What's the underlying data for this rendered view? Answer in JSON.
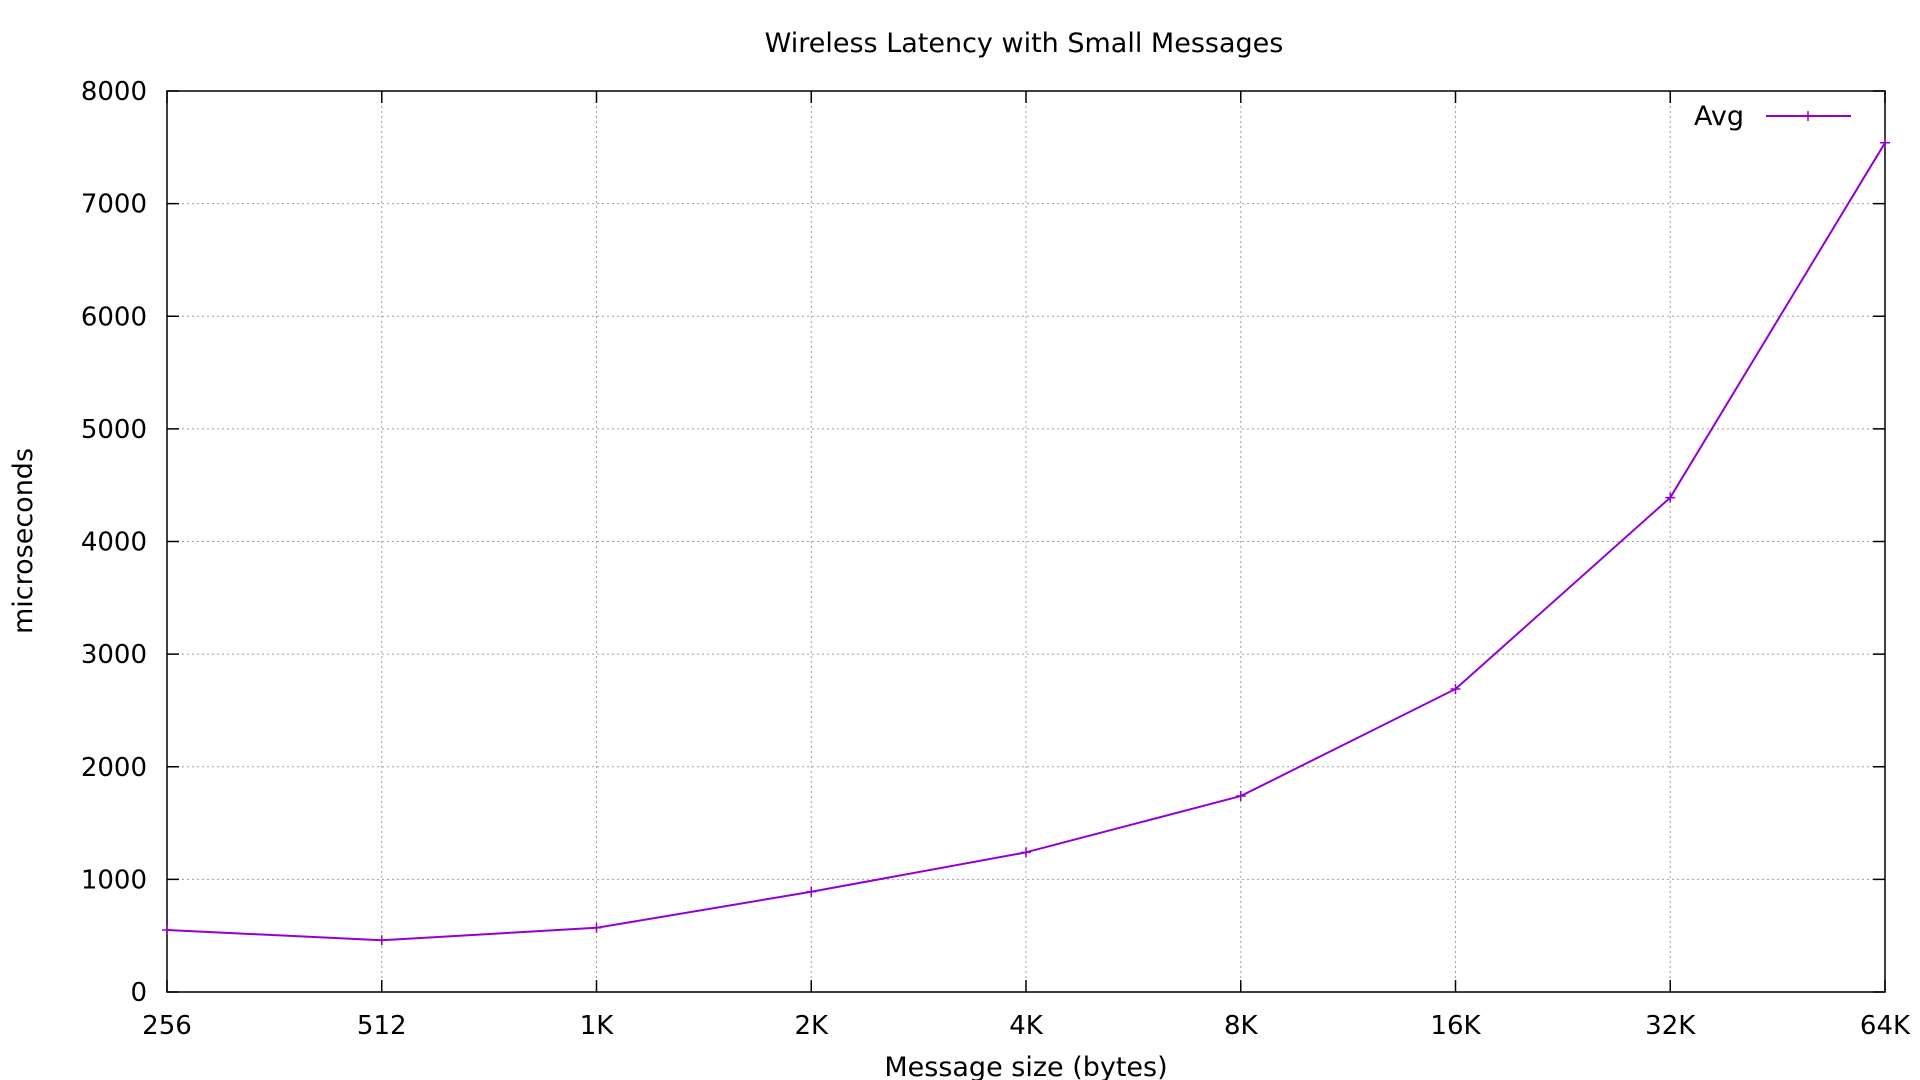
{
  "chart_data": {
    "type": "line",
    "title": "Wireless Latency with Small Messages",
    "xlabel": "Message size (bytes)",
    "ylabel": "microseconds",
    "categories": [
      "256",
      "512",
      "1K",
      "2K",
      "4K",
      "8K",
      "16K",
      "32K",
      "64K"
    ],
    "yticks": [
      "0",
      "1000",
      "2000",
      "3000",
      "4000",
      "5000",
      "6000",
      "7000",
      "8000"
    ],
    "ylim": [
      0,
      8000
    ],
    "grid": true,
    "legend_position": "top-right",
    "series": [
      {
        "name": "Avg",
        "color": "#9400d3",
        "marker": "plus",
        "values": [
          550,
          460,
          570,
          890,
          1240,
          1740,
          2690,
          4390,
          7540
        ]
      }
    ]
  }
}
